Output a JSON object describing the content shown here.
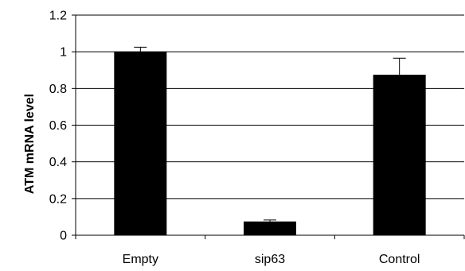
{
  "chart_data": {
    "type": "bar",
    "title": "",
    "xlabel": "",
    "ylabel": "ATM mRNA level",
    "categories": [
      "Empty",
      "sip63",
      "Control"
    ],
    "values": [
      1.0,
      0.075,
      0.875
    ],
    "error": [
      0.025,
      0.008,
      0.09
    ],
    "ylim": [
      0,
      1.2
    ],
    "yticks": [
      0,
      0.2,
      0.4,
      0.6,
      0.8,
      1,
      1.2
    ],
    "ytick_labels": [
      "0",
      "0.2",
      "0.4",
      "0.6",
      "0.8",
      "1",
      "1.2"
    ],
    "grid": true,
    "legend": "none",
    "colors": {
      "bar": "#000000",
      "grid": "#000000",
      "axis": "#000000",
      "background": "#ffffff"
    }
  }
}
